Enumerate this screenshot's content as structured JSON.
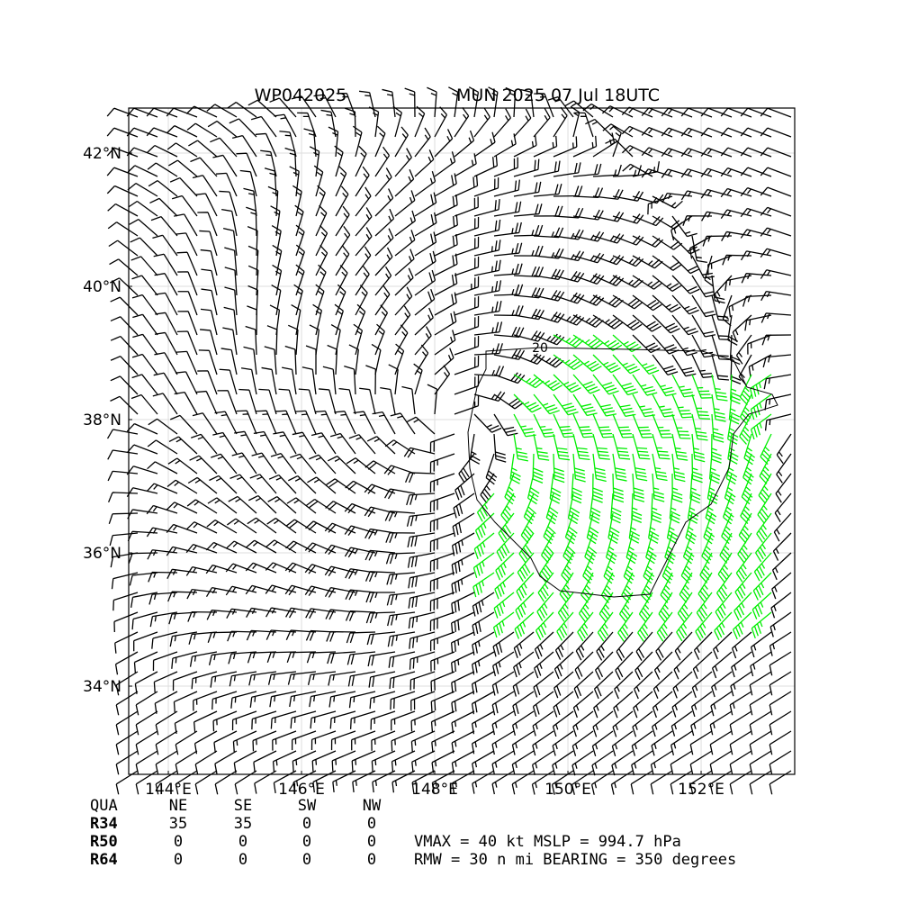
{
  "map": {
    "title_left": "WP042025",
    "title_right": "MUN 2025 07 Jul 18UTC",
    "xlim": [
      143.405,
      153.405
    ],
    "ylim": [
      32.676,
      42.676
    ],
    "xticks": [
      {
        "value": 144,
        "label": "144°E"
      },
      {
        "value": 146,
        "label": "146°E"
      },
      {
        "value": 148,
        "label": "148°E"
      },
      {
        "value": 150,
        "label": "150°E"
      },
      {
        "value": 152,
        "label": "152°E"
      }
    ],
    "yticks": [
      {
        "value": 34,
        "label": "34°N"
      },
      {
        "value": 36,
        "label": "36°N"
      },
      {
        "value": 38,
        "label": "38°N"
      },
      {
        "value": 40,
        "label": "40°N"
      },
      {
        "value": 42,
        "label": "42°N"
      }
    ],
    "grid": true,
    "contour_label": "20"
  },
  "table": {
    "header": [
      "QUA",
      "NE",
      "SE",
      "SW",
      "NW"
    ],
    "rows": [
      [
        "R34",
        "35",
        "35",
        "0",
        "0"
      ],
      [
        "R50",
        "0",
        "0",
        "0",
        "0"
      ],
      [
        "R64",
        "0",
        "0",
        "0",
        "0"
      ]
    ]
  },
  "info": [
    "VMAX =  40 kt MSLP = 994.7 hPa",
    "RMW =  30 n mi BEARING = 350 degrees"
  ]
}
